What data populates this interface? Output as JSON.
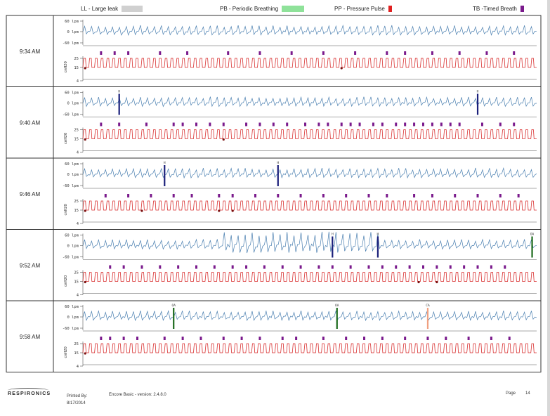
{
  "legend": {
    "items": [
      {
        "label": "LL - Large leak",
        "color": "#d0d0d0"
      },
      {
        "label": "PB - Periodic Breathing",
        "color": "#8fe29a"
      },
      {
        "label": "PP - Pressure Pulse",
        "color": "#e02020"
      },
      {
        "label": "TB -Timed Breath",
        "color": "#7a1a8c"
      }
    ]
  },
  "chart_data": [
    {
      "type": "line",
      "time": "9:34 AM",
      "flow": {
        "ylabel": "",
        "ticks": [
          "60 lpm",
          "0 lpm",
          "-60 lpm"
        ],
        "events": []
      },
      "pressure": {
        "ylabel": "cmH2O",
        "ticks": [
          "25",
          "15",
          "4"
        ],
        "tb_markers": [
          0.04,
          0.07,
          0.1,
          0.17,
          0.23,
          0.32,
          0.39,
          0.46,
          0.53,
          0.6,
          0.67,
          0.71,
          0.77,
          0.83,
          0.89,
          0.95
        ],
        "dots": [
          0.005,
          0.57
        ]
      }
    },
    {
      "type": "line",
      "time": "9:40 AM",
      "flow": {
        "ylabel": "",
        "ticks": [
          "60 lpm",
          "0 lpm",
          "-60 lpm"
        ],
        "events": [
          {
            "x": 0.08,
            "label": "H",
            "color": "#1a1f7a"
          },
          {
            "x": 0.87,
            "label": "H",
            "color": "#1a1f7a"
          }
        ]
      },
      "pressure": {
        "ylabel": "cmH2O",
        "ticks": [
          "25",
          "15",
          "4"
        ],
        "tb_markers": [
          0.04,
          0.08,
          0.14,
          0.2,
          0.22,
          0.25,
          0.28,
          0.31,
          0.36,
          0.39,
          0.42,
          0.45,
          0.49,
          0.52,
          0.54,
          0.57,
          0.59,
          0.61,
          0.64,
          0.66,
          0.69,
          0.71,
          0.73,
          0.75,
          0.77,
          0.79,
          0.81,
          0.83,
          0.88,
          0.92,
          0.95
        ],
        "dots": [
          0.005,
          0.31
        ]
      }
    },
    {
      "type": "line",
      "time": "9:46 AM",
      "flow": {
        "ylabel": "",
        "ticks": [
          "60 lpm",
          "0 lpm",
          "-60 lpm"
        ],
        "events": [
          {
            "x": 0.18,
            "label": "H",
            "color": "#1a1f7a"
          },
          {
            "x": 0.43,
            "label": "H",
            "color": "#1a1f7a"
          }
        ]
      },
      "pressure": {
        "ylabel": "cmH2O",
        "ticks": [
          "25",
          "15",
          "4"
        ],
        "tb_markers": [
          0.05,
          0.1,
          0.15,
          0.2,
          0.24,
          0.3,
          0.33,
          0.38,
          0.43,
          0.48,
          0.53,
          0.58,
          0.63,
          0.67,
          0.73,
          0.77,
          0.82,
          0.87,
          0.92,
          0.96
        ],
        "dots": [
          0.005,
          0.13,
          0.3,
          0.33
        ]
      }
    },
    {
      "type": "line",
      "time": "9:52 AM",
      "flow": {
        "ylabel": "",
        "ticks": [
          "60 lpm",
          "0 lpm",
          "-60 lpm"
        ],
        "events": [
          {
            "x": 0.55,
            "label": "H",
            "color": "#1a1f7a"
          },
          {
            "x": 0.65,
            "label": "H",
            "color": "#1a1f7a"
          },
          {
            "x": 0.99,
            "label": "OA",
            "color": "#1d6b1d"
          }
        ]
      },
      "pressure": {
        "ylabel": "cmH2O",
        "ticks": [
          "25",
          "15",
          "4"
        ],
        "tb_markers": [
          0.06,
          0.09,
          0.13,
          0.17,
          0.21,
          0.25,
          0.29,
          0.33,
          0.36,
          0.4,
          0.44,
          0.48,
          0.52,
          0.55,
          0.59,
          0.63,
          0.66,
          0.69,
          0.72,
          0.75,
          0.78,
          0.81,
          0.84,
          0.87,
          0.9,
          0.93
        ],
        "dots": [
          0.005,
          0.74,
          0.78
        ]
      }
    },
    {
      "type": "line",
      "time": "9:58 AM",
      "flow": {
        "ylabel": "",
        "ticks": [
          "60 lpm",
          "0 lpm",
          "-60 lpm"
        ],
        "events": [
          {
            "x": 0.2,
            "label": "OA",
            "color": "#1d6b1d"
          },
          {
            "x": 0.56,
            "label": "OA",
            "color": "#1d6b1d"
          },
          {
            "x": 0.76,
            "label": "CA",
            "color": "#f0a080"
          }
        ]
      },
      "pressure": {
        "ylabel": "cmH2O",
        "ticks": [
          "25",
          "15",
          "4"
        ],
        "tb_markers": [
          0.04,
          0.06,
          0.09,
          0.12,
          0.18,
          0.22,
          0.26,
          0.31,
          0.35,
          0.39,
          0.44,
          0.47,
          0.53,
          0.58,
          0.62,
          0.66,
          0.71,
          0.76,
          0.8,
          0.85,
          0.9,
          0.94
        ],
        "dots": [
          0.005
        ]
      }
    }
  ],
  "footer": {
    "brand": "RESPIRONICS",
    "printed_by": "Printed By:",
    "printed_date": "8/17/2014",
    "version": "Encore Basic - version: 2.4.8.0",
    "page_label": "Page",
    "page_number": "14"
  }
}
